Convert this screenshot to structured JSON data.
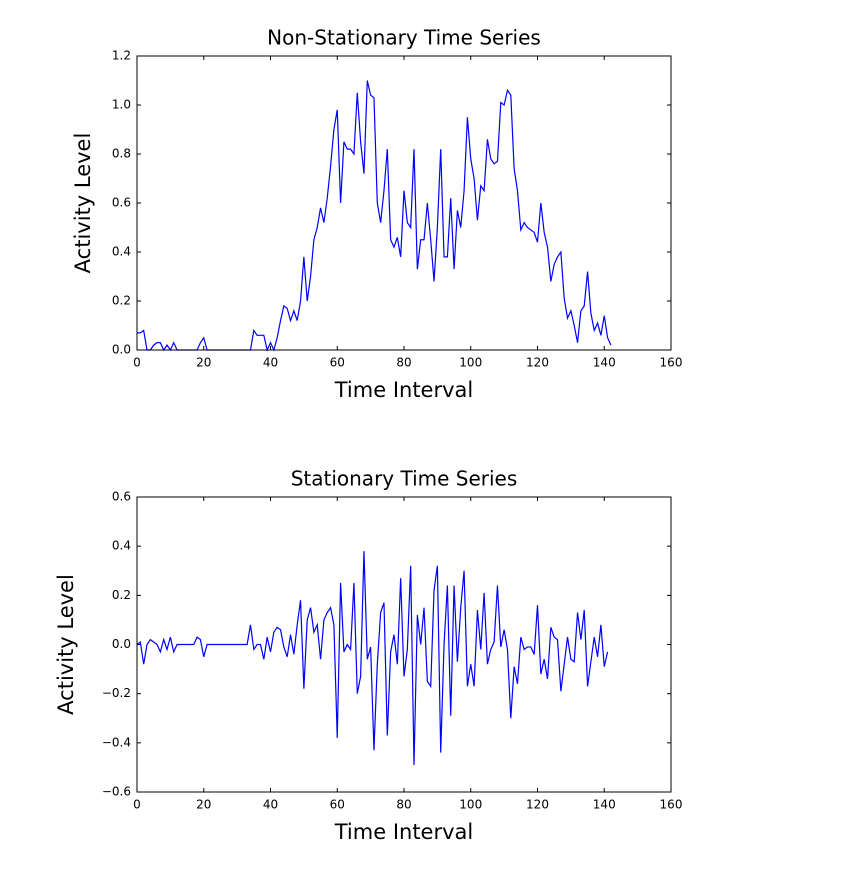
{
  "chart_data": [
    {
      "type": "line",
      "title": "Non-Stationary Time Series",
      "xlabel": "Time Interval",
      "ylabel": "Activity Level",
      "x": [
        0,
        1,
        2,
        3,
        4,
        5,
        6,
        7,
        8,
        9,
        10,
        11,
        12,
        13,
        14,
        15,
        16,
        17,
        18,
        19,
        20,
        21,
        22,
        23,
        24,
        25,
        26,
        27,
        28,
        29,
        30,
        31,
        32,
        33,
        34,
        35,
        36,
        37,
        38,
        39,
        40,
        41,
        42,
        43,
        44,
        45,
        46,
        47,
        48,
        49,
        50,
        51,
        52,
        53,
        54,
        55,
        56,
        57,
        58,
        59,
        60,
        61,
        62,
        63,
        64,
        65,
        66,
        67,
        68,
        69,
        70,
        71,
        72,
        73,
        74,
        75,
        76,
        77,
        78,
        79,
        80,
        81,
        82,
        83,
        84,
        85,
        86,
        87,
        88,
        89,
        90,
        91,
        92,
        93,
        94,
        95,
        96,
        97,
        98,
        99,
        100,
        101,
        102,
        103,
        104,
        105,
        106,
        107,
        108,
        109,
        110,
        111,
        112,
        113,
        114,
        115,
        116,
        117,
        118,
        119,
        120,
        121,
        122,
        123,
        124,
        125,
        126,
        127,
        128,
        129,
        130,
        131,
        132,
        133,
        134,
        135,
        136,
        137,
        138,
        139,
        140,
        141,
        142
      ],
      "series": [
        {
          "color": "#0000ff",
          "values": [
            0.07,
            0.07,
            0.08,
            0,
            0,
            0.02,
            0.03,
            0.03,
            0,
            0.02,
            0,
            0.03,
            0,
            0,
            0,
            0,
            0,
            0,
            0,
            0.03,
            0.05,
            0,
            0,
            0,
            0,
            0,
            0,
            0,
            0,
            0,
            0,
            0,
            0,
            0,
            0,
            0.08,
            0.06,
            0.06,
            0.06,
            0,
            0.03,
            0,
            0.05,
            0.12,
            0.18,
            0.17,
            0.12,
            0.16,
            0.12,
            0.2,
            0.38,
            0.2,
            0.3,
            0.45,
            0.5,
            0.58,
            0.52,
            0.62,
            0.75,
            0.9,
            0.98,
            0.6,
            0.85,
            0.82,
            0.82,
            0.8,
            1.05,
            0.85,
            0.72,
            1.1,
            1.04,
            1.03,
            0.6,
            0.52,
            0.65,
            0.82,
            0.45,
            0.42,
            0.46,
            0.38,
            0.65,
            0.52,
            0.5,
            0.82,
            0.33,
            0.45,
            0.45,
            0.6,
            0.45,
            0.28,
            0.5,
            0.82,
            0.38,
            0.38,
            0.62,
            0.33,
            0.57,
            0.5,
            0.65,
            0.95,
            0.78,
            0.7,
            0.53,
            0.67,
            0.65,
            0.86,
            0.78,
            0.76,
            0.77,
            1.01,
            1.0,
            1.06,
            1.04,
            0.74,
            0.65,
            0.49,
            0.52,
            0.5,
            0.49,
            0.48,
            0.44,
            0.6,
            0.48,
            0.42,
            0.28,
            0.35,
            0.38,
            0.4,
            0.21,
            0.13,
            0.16,
            0.1,
            0.03,
            0.16,
            0.18,
            0.32,
            0.15,
            0.08,
            0.11,
            0.06,
            0.14,
            0.05,
            0.02
          ]
        }
      ],
      "xlim": [
        0,
        160
      ],
      "xticks": [
        0,
        20,
        40,
        60,
        80,
        100,
        120,
        140,
        160
      ],
      "ylim": [
        0,
        1.2
      ],
      "yticks": [
        {
          "value": 0,
          "label": "0.0"
        },
        {
          "value": 0.2,
          "label": "0.2"
        },
        {
          "value": 0.4,
          "label": "0.4"
        },
        {
          "value": 0.6,
          "label": "0.6"
        },
        {
          "value": 0.8,
          "label": "0.8"
        },
        {
          "value": 1.0,
          "label": "1.0"
        },
        {
          "value": 1.2,
          "label": "1.2"
        }
      ]
    },
    {
      "type": "line",
      "title": "Stationary Time Series",
      "xlabel": "Time Interval",
      "ylabel": "Activity Level",
      "x": [
        0,
        1,
        2,
        3,
        4,
        5,
        6,
        7,
        8,
        9,
        10,
        11,
        12,
        13,
        14,
        15,
        16,
        17,
        18,
        19,
        20,
        21,
        22,
        23,
        24,
        25,
        26,
        27,
        28,
        29,
        30,
        31,
        32,
        33,
        34,
        35,
        36,
        37,
        38,
        39,
        40,
        41,
        42,
        43,
        44,
        45,
        46,
        47,
        48,
        49,
        50,
        51,
        52,
        53,
        54,
        55,
        56,
        57,
        58,
        59,
        60,
        61,
        62,
        63,
        64,
        65,
        66,
        67,
        68,
        69,
        70,
        71,
        72,
        73,
        74,
        75,
        76,
        77,
        78,
        79,
        80,
        81,
        82,
        83,
        84,
        85,
        86,
        87,
        88,
        89,
        90,
        91,
        92,
        93,
        94,
        95,
        96,
        97,
        98,
        99,
        100,
        101,
        102,
        103,
        104,
        105,
        106,
        107,
        108,
        109,
        110,
        111,
        112,
        113,
        114,
        115,
        116,
        117,
        118,
        119,
        120,
        121,
        122,
        123,
        124,
        125,
        126,
        127,
        128,
        129,
        130,
        131,
        132,
        133,
        134,
        135,
        136,
        137,
        138,
        139,
        140,
        141
      ],
      "series": [
        {
          "color": "#0000ff",
          "values": [
            0,
            0.01,
            -0.08,
            0,
            0.02,
            0.01,
            0,
            -0.03,
            0.02,
            -0.02,
            0.03,
            -0.03,
            0,
            0,
            0,
            0,
            0,
            0,
            0.03,
            0.02,
            -0.05,
            0,
            0,
            0,
            0,
            0,
            0,
            0,
            0,
            0,
            0,
            0,
            0,
            0,
            0.08,
            -0.02,
            0,
            0,
            -0.06,
            0.03,
            -0.03,
            0.05,
            0.07,
            0.06,
            -0.01,
            -0.05,
            0.04,
            -0.04,
            0.08,
            0.18,
            -0.18,
            0.1,
            0.15,
            0.05,
            0.08,
            -0.06,
            0.1,
            0.13,
            0.15,
            0.08,
            -0.38,
            0.25,
            -0.03,
            0,
            -0.02,
            0.25,
            -0.2,
            -0.13,
            0.38,
            -0.06,
            -0.01,
            -0.43,
            -0.08,
            0.13,
            0.17,
            -0.37,
            -0.03,
            0.04,
            -0.08,
            0.27,
            -0.13,
            -0.02,
            0.32,
            -0.49,
            0.12,
            0,
            0.15,
            -0.15,
            -0.17,
            0.22,
            0.32,
            -0.44,
            0,
            0.24,
            -0.29,
            0.24,
            -0.07,
            0.15,
            0.3,
            -0.17,
            -0.08,
            -0.17,
            0.14,
            -0.02,
            0.21,
            -0.08,
            -0.02,
            0.01,
            0.24,
            -0.01,
            0.06,
            -0.02,
            -0.3,
            -0.09,
            -0.16,
            0.03,
            -0.02,
            -0.01,
            -0.01,
            -0.04,
            0.16,
            -0.12,
            -0.06,
            -0.14,
            0.07,
            0.03,
            0.02,
            -0.19,
            -0.08,
            0.03,
            -0.06,
            -0.07,
            0.13,
            0.02,
            0.14,
            -0.17,
            -0.07,
            0.03,
            -0.05,
            0.08,
            -0.09,
            -0.03
          ]
        }
      ],
      "xlim": [
        0,
        160
      ],
      "xticks": [
        0,
        20,
        40,
        60,
        80,
        100,
        120,
        140,
        160
      ],
      "ylim": [
        -0.6,
        0.6
      ],
      "yticks": [
        {
          "value": -0.6,
          "label": "−0.6"
        },
        {
          "value": -0.4,
          "label": "−0.4"
        },
        {
          "value": -0.2,
          "label": "−0.2"
        },
        {
          "value": 0,
          "label": "0.0"
        },
        {
          "value": 0.2,
          "label": "0.2"
        },
        {
          "value": 0.4,
          "label": "0.4"
        },
        {
          "value": 0.6,
          "label": "0.6"
        }
      ]
    }
  ]
}
